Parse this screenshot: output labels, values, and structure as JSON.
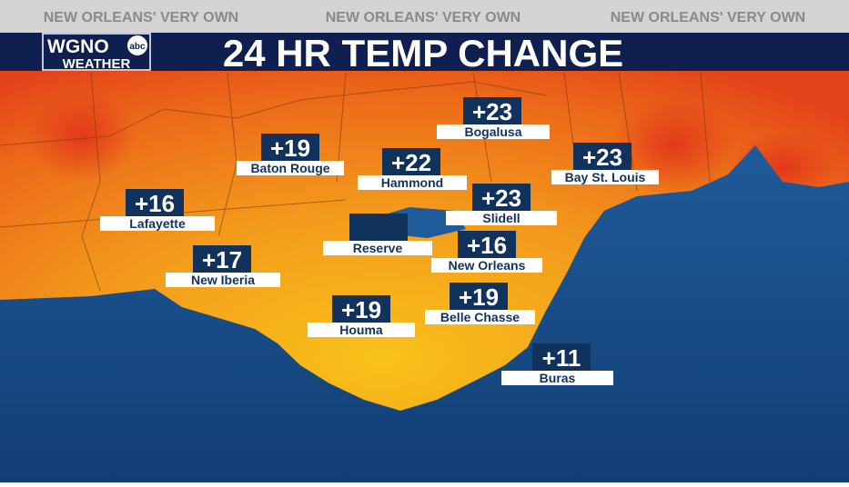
{
  "header": {
    "tagline": [
      "NEW ORLEANS' VERY OWN",
      "NEW ORLEANS' VERY OWN",
      "NEW ORLEANS' VERY OWN"
    ],
    "title": "24 HR TEMP CHANGE"
  },
  "logo": {
    "call_sign": "WGNO",
    "network": "abc",
    "subtitle": "WEATHER"
  },
  "stations": [
    {
      "name": "Bogalusa",
      "change": "+23"
    },
    {
      "name": "Baton Rouge",
      "change": "+19"
    },
    {
      "name": "Hammond",
      "change": "+22"
    },
    {
      "name": "Bay St. Louis",
      "change": "+23"
    },
    {
      "name": "Lafayette",
      "change": "+16"
    },
    {
      "name": "Slidell",
      "change": "+23"
    },
    {
      "name": "Reserve"
    },
    {
      "name": "New Orleans",
      "change": "+16"
    },
    {
      "name": "New Iberia",
      "change": "+17"
    },
    {
      "name": "Houma",
      "change": "+19"
    },
    {
      "name": "Belle Chasse",
      "change": "+19"
    },
    {
      "name": "Buras",
      "change": "+11"
    }
  ]
}
